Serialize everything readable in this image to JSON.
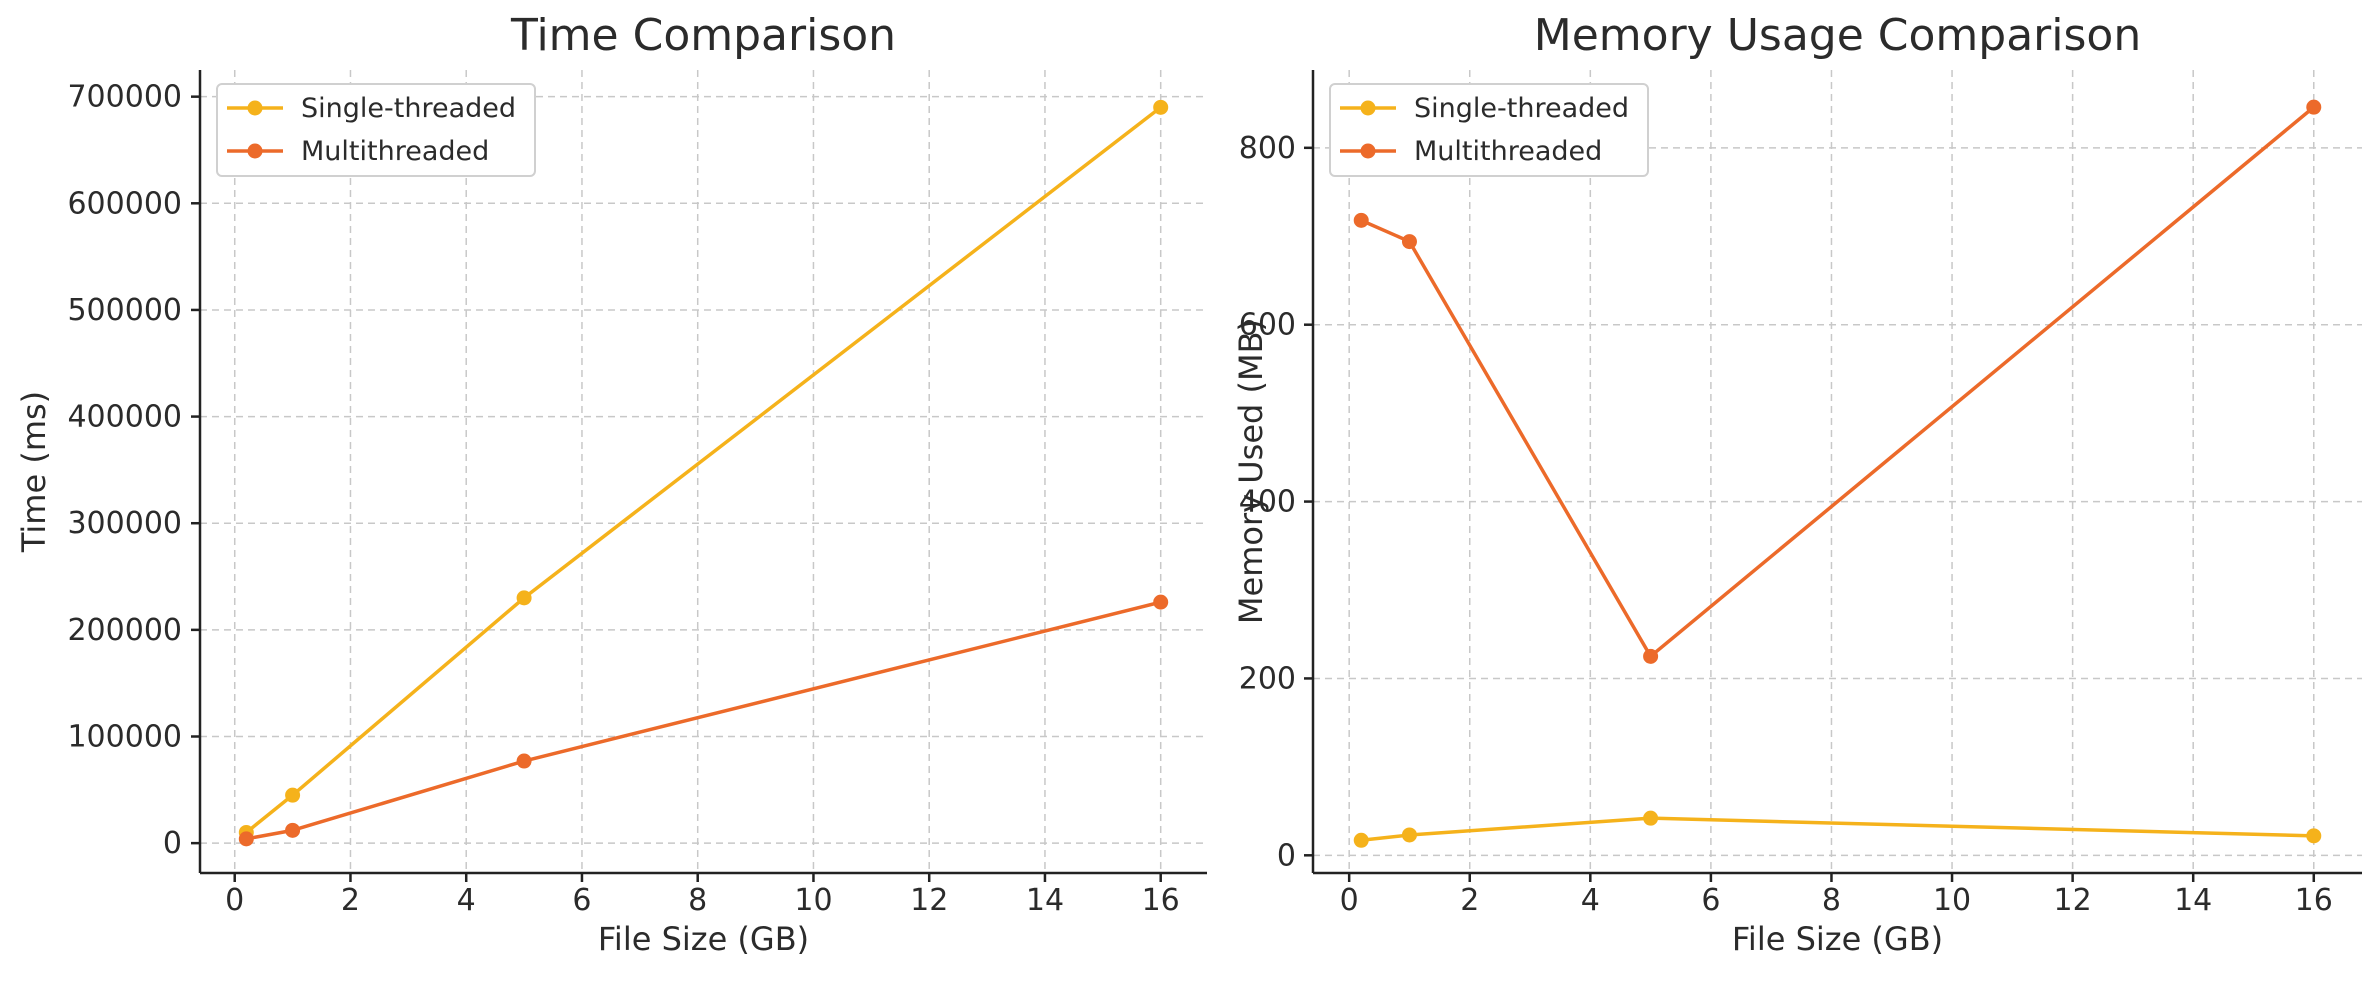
{
  "chart_data": [
    {
      "type": "line",
      "title": "Time Comparison",
      "xlabel": "File Size (GB)",
      "ylabel": "Time (ms)",
      "xlim": [
        -0.6,
        16.8
      ],
      "ylim": [
        -28000,
        725000
      ],
      "x_ticks": [
        0,
        2,
        4,
        6,
        8,
        10,
        12,
        14,
        16
      ],
      "y_ticks": [
        0,
        100000,
        200000,
        300000,
        400000,
        500000,
        600000,
        700000
      ],
      "grid": true,
      "legend_position": "top-left",
      "series": [
        {
          "name": "Single-threaded",
          "color": "#f5b21b",
          "x": [
            0.2,
            1,
            5,
            16
          ],
          "y": [
            10000,
            45000,
            230000,
            690000
          ]
        },
        {
          "name": "Multithreaded",
          "color": "#ec6a2a",
          "x": [
            0.2,
            1,
            5,
            16
          ],
          "y": [
            4000,
            12000,
            77000,
            226000
          ]
        }
      ]
    },
    {
      "type": "line",
      "title": "Memory Usage Comparison",
      "xlabel": "File Size (GB)",
      "ylabel": "Memory Used (MB)",
      "xlim": [
        -0.6,
        16.8
      ],
      "ylim": [
        -20,
        888
      ],
      "x_ticks": [
        0,
        2,
        4,
        6,
        8,
        10,
        12,
        14,
        16
      ],
      "y_ticks": [
        0,
        200,
        400,
        600,
        800
      ],
      "grid": true,
      "legend_position": "top-left",
      "series": [
        {
          "name": "Single-threaded",
          "color": "#f5b21b",
          "x": [
            0.2,
            1,
            5,
            16
          ],
          "y": [
            17,
            23,
            42,
            22
          ]
        },
        {
          "name": "Multithreaded",
          "color": "#ec6a2a",
          "x": [
            0.2,
            1,
            5,
            16
          ],
          "y": [
            718,
            694,
            225,
            846
          ]
        }
      ]
    }
  ]
}
